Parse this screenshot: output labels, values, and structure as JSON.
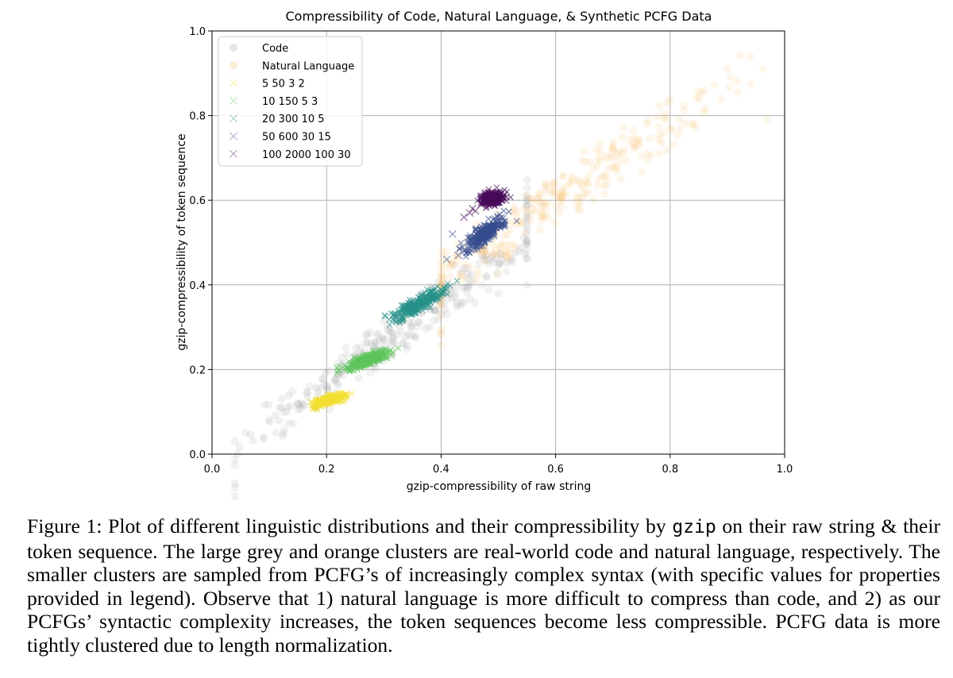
{
  "chart_data": {
    "type": "scatter",
    "title": "Compressibility of Code, Natural Language, & Synthetic PCFG Data",
    "xlabel": "gzip-compressibility of raw string",
    "ylabel": "gzip-compressibility of token sequence",
    "xlim": [
      0.0,
      1.0
    ],
    "ylim": [
      0.0,
      1.0
    ],
    "xticks": [
      "0.0",
      "0.2",
      "0.4",
      "0.6",
      "0.8",
      "1.0"
    ],
    "yticks": [
      "0.0",
      "0.2",
      "0.4",
      "0.6",
      "0.8",
      "1.0"
    ],
    "grid": true,
    "legend_position": "top-left",
    "series": [
      {
        "name": "Code",
        "marker": "circle",
        "color": "#9a9a9a",
        "center": [
          0.34,
          0.3
        ],
        "spread_along": 0.21,
        "spread_across": 0.018,
        "slope_ratio": 1.0,
        "x_range": [
          0.04,
          0.55
        ],
        "points": [
          [
            0.04,
            0.03
          ],
          [
            0.09,
            0.04
          ],
          [
            0.1,
            0.08
          ],
          [
            0.13,
            0.1
          ],
          [
            0.15,
            0.12
          ],
          [
            0.17,
            0.16
          ],
          [
            0.22,
            0.19
          ],
          [
            0.26,
            0.24
          ],
          [
            0.3,
            0.22
          ],
          [
            0.33,
            0.29
          ],
          [
            0.38,
            0.3
          ],
          [
            0.41,
            0.33
          ],
          [
            0.44,
            0.36
          ],
          [
            0.5,
            0.38
          ],
          [
            0.55,
            0.4
          ]
        ]
      },
      {
        "name": "Natural Language",
        "marker": "circle",
        "color": "#f5b75a",
        "center": [
          0.6,
          0.6
        ],
        "spread_along": 0.19,
        "spread_across": 0.025,
        "slope_ratio": 0.9,
        "x_range": [
          0.4,
          0.97
        ],
        "points": [
          [
            0.42,
            0.45
          ],
          [
            0.48,
            0.5
          ],
          [
            0.52,
            0.53
          ],
          [
            0.56,
            0.58
          ],
          [
            0.6,
            0.62
          ],
          [
            0.63,
            0.65
          ],
          [
            0.67,
            0.72
          ],
          [
            0.72,
            0.72
          ],
          [
            0.76,
            0.78
          ],
          [
            0.78,
            0.71
          ],
          [
            0.8,
            0.84
          ],
          [
            0.86,
            0.86
          ],
          [
            0.9,
            0.91
          ],
          [
            0.94,
            0.94
          ],
          [
            0.97,
            0.79
          ]
        ]
      },
      {
        "name": "5 50 3 2",
        "marker": "x",
        "color": "#f2e030",
        "center": [
          0.205,
          0.128
        ],
        "spread_along": 0.016,
        "spread_across": 0.005,
        "slope_ratio": 0.4
      },
      {
        "name": "10 150 5 3",
        "marker": "x",
        "color": "#5ec45c",
        "center": [
          0.27,
          0.222
        ],
        "spread_along": 0.022,
        "spread_across": 0.006,
        "slope_ratio": 0.55
      },
      {
        "name": "20 300 10 5",
        "marker": "x",
        "color": "#279189",
        "center": [
          0.36,
          0.355
        ],
        "spread_along": 0.032,
        "spread_across": 0.008,
        "slope_ratio": 0.8
      },
      {
        "name": "50 600 30 15",
        "marker": "x",
        "color": "#354d8e",
        "center": [
          0.475,
          0.52
        ],
        "spread_along": 0.026,
        "spread_across": 0.008,
        "slope_ratio": 1.2,
        "points": [
          [
            0.41,
            0.46
          ],
          [
            0.42,
            0.52
          ],
          [
            0.44,
            0.48
          ],
          [
            0.43,
            0.47
          ]
        ]
      },
      {
        "name": "100 2000 100 30",
        "marker": "x",
        "color": "#470b5a",
        "center": [
          0.49,
          0.605
        ],
        "spread_along": 0.01,
        "spread_across": 0.008,
        "slope_ratio": 0.4,
        "points": [
          [
            0.44,
            0.56
          ],
          [
            0.45,
            0.57
          ],
          [
            0.46,
            0.575
          ],
          [
            0.47,
            0.59
          ],
          [
            0.455,
            0.58
          ]
        ]
      }
    ]
  },
  "caption": {
    "prefix": "Figure 1: Plot of different linguistic distributions and their compressibility by ",
    "code": "gzip",
    "body": " on their raw string & their token sequence. The large grey and orange clusters are real-world code and natural language, respectively. The smaller clusters are sampled from PCFG’s of increasingly complex syntax (with specific values for properties provided in legend). Observe that 1) natural language is more difficult to compress than code, and 2) as our PCFGs’ syntactic complexity increases, the token sequences become less compressible. PCFG data is more tightly clustered due to length normalization."
  }
}
